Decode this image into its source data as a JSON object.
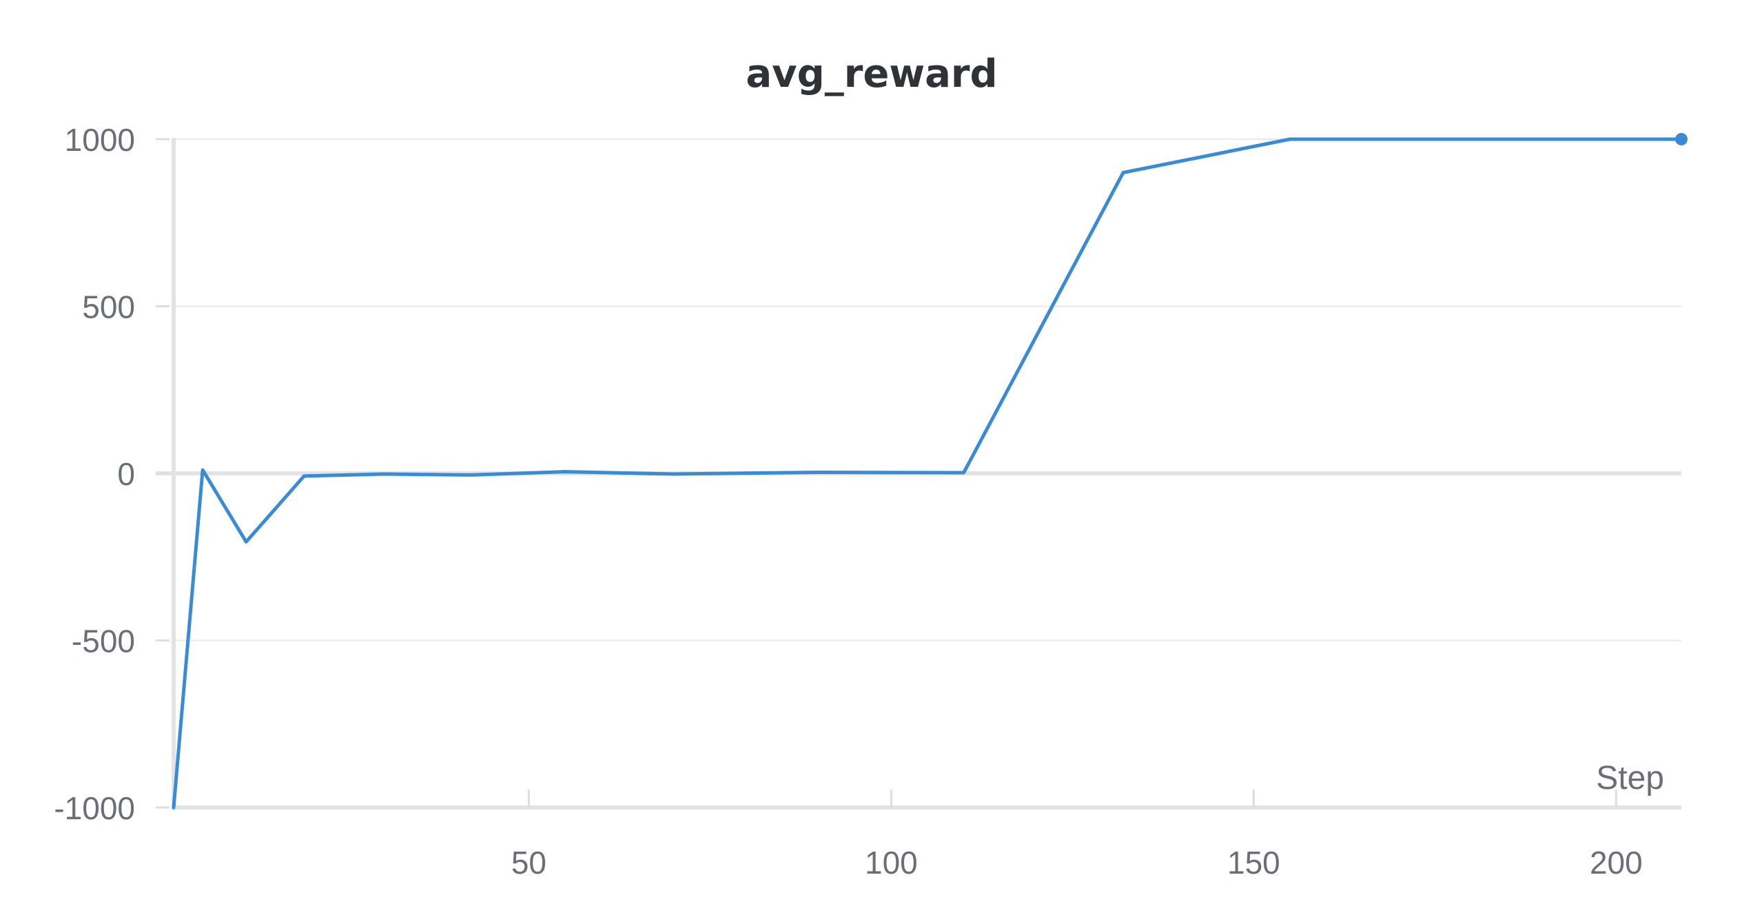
{
  "chart_data": {
    "type": "line",
    "title": "avg_reward",
    "xlabel": "Step",
    "ylabel": "",
    "xlim": [
      1,
      209
    ],
    "ylim": [
      -1000,
      1000
    ],
    "x_ticks": [
      50,
      100,
      150,
      200
    ],
    "y_ticks": [
      {
        "value": 1000,
        "label": "1000"
      },
      {
        "value": 500,
        "label": "500"
      },
      {
        "value": 0,
        "label": "0"
      },
      {
        "value": -500,
        "label": "-500"
      },
      {
        "value": -1000,
        "label": "-1000"
      }
    ],
    "grid": true,
    "legend": "none",
    "series": [
      {
        "color": "#3a8bd6",
        "x": [
          1,
          5,
          11,
          19,
          30,
          42,
          55,
          70,
          90,
          110,
          132,
          155,
          170,
          209
        ],
        "y": [
          -1000,
          10,
          -205,
          -8,
          -2,
          -5,
          5,
          -2,
          3,
          2,
          900,
          1000,
          1000,
          1000
        ],
        "end_marker": true
      }
    ]
  }
}
